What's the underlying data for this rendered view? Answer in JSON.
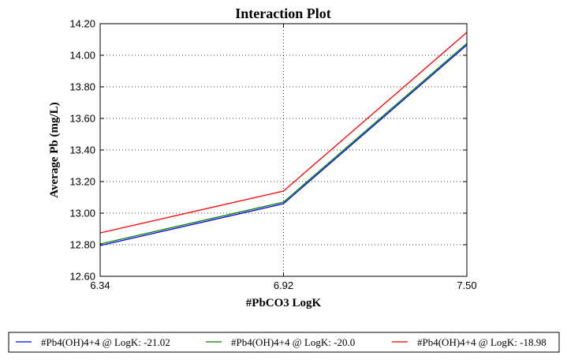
{
  "chart_data": {
    "type": "line",
    "title": "Interaction Plot",
    "xlabel": "#PbCO3 LogK",
    "ylabel": "Average Pb (mg/L)",
    "x": [
      6.34,
      6.92,
      7.5
    ],
    "x_tick_labels": [
      "6.34",
      "6.92",
      "7.50"
    ],
    "xlim": [
      6.34,
      7.5
    ],
    "ylim": [
      12.6,
      14.2
    ],
    "y_ticks": [
      12.6,
      12.8,
      13.0,
      13.2,
      13.4,
      13.6,
      13.8,
      14.0,
      14.2
    ],
    "y_tick_labels": [
      "12.60",
      "12.80",
      "13.00",
      "13.20",
      "13.40",
      "13.60",
      "13.80",
      "14.00",
      "14.20"
    ],
    "grid": true,
    "legend_position": "bottom",
    "series": [
      {
        "name": "#Pb4(OH)4+4 @ LogK: -21.02",
        "color": "#0000ff",
        "values": [
          12.795,
          13.06,
          14.065
        ]
      },
      {
        "name": "#Pb4(OH)4+4 @ LogK: -20.0",
        "color": "#008000",
        "values": [
          12.805,
          13.07,
          14.075
        ]
      },
      {
        "name": "#Pb4(OH)4+4 @ LogK: -18.98",
        "color": "#ff0000",
        "values": [
          12.875,
          13.14,
          14.145
        ]
      }
    ]
  }
}
